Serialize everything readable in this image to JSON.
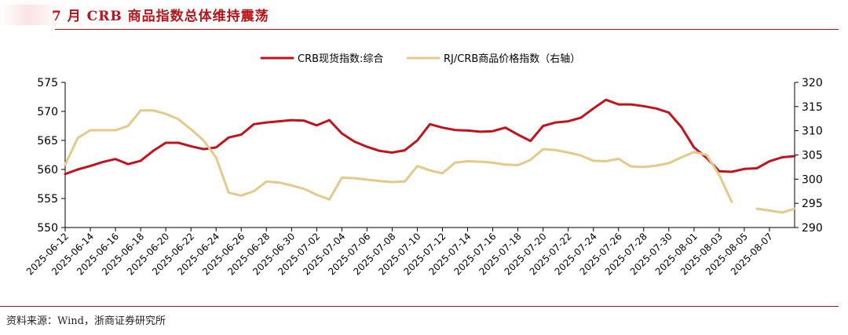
{
  "header": {
    "title": "7 月 CRB 商品指数总体维持震荡"
  },
  "footer": {
    "source": "资料来源：Wind，浙商证券研究所"
  },
  "colors": {
    "series1": "#c0131b",
    "series2": "#e4c98a",
    "accent": "#b8141a"
  },
  "chart_data": {
    "type": "line",
    "legend_position": "top-center",
    "grid": false,
    "x_ticks": [
      "2025-06-12",
      "2025-06-14",
      "2025-06-16",
      "2025-06-18",
      "2025-06-20",
      "2025-06-22",
      "2025-06-24",
      "2025-06-26",
      "2025-06-28",
      "2025-06-30",
      "2025-07-02",
      "2025-07-04",
      "2025-07-06",
      "2025-07-08",
      "2025-07-10",
      "2025-07-12",
      "2025-07-14",
      "2025-07-16",
      "2025-07-18",
      "2025-07-20",
      "2025-07-22",
      "2025-07-24",
      "2025-07-26",
      "2025-07-28",
      "2025-07-30",
      "2025-08-01",
      "2025-08-03",
      "2025-08-05",
      "2025-08-07"
    ],
    "y_left": {
      "range": [
        550,
        575
      ],
      "ticks": [
        "575",
        "570",
        "565",
        "560",
        "555",
        "550"
      ]
    },
    "y_right": {
      "range": [
        290,
        320
      ],
      "ticks": [
        "320",
        "315",
        "310",
        "305",
        "300",
        "295",
        "290"
      ]
    },
    "series": [
      {
        "name": "CRB现货指数:综合",
        "axis": "left",
        "points": [
          [
            "2025-06-12",
            559.2
          ],
          [
            "2025-06-13",
            560.0
          ],
          [
            "2025-06-14",
            560.6
          ],
          [
            "2025-06-15",
            561.3
          ],
          [
            "2025-06-16",
            561.8
          ],
          [
            "2025-06-17",
            560.9
          ],
          [
            "2025-06-18",
            561.5
          ],
          [
            "2025-06-19",
            563.2
          ],
          [
            "2025-06-20",
            564.6
          ],
          [
            "2025-06-21",
            564.6
          ],
          [
            "2025-06-22",
            564.0
          ],
          [
            "2025-06-23",
            563.5
          ],
          [
            "2025-06-24",
            563.8
          ],
          [
            "2025-06-25",
            565.5
          ],
          [
            "2025-06-26",
            566.0
          ],
          [
            "2025-06-27",
            567.8
          ],
          [
            "2025-06-28",
            568.1
          ],
          [
            "2025-06-29",
            568.3
          ],
          [
            "2025-06-30",
            568.5
          ],
          [
            "2025-07-01",
            568.4
          ],
          [
            "2025-07-02",
            567.6
          ],
          [
            "2025-07-03",
            568.5
          ],
          [
            "2025-07-04",
            566.2
          ],
          [
            "2025-07-05",
            564.8
          ],
          [
            "2025-07-06",
            563.9
          ],
          [
            "2025-07-07",
            563.2
          ],
          [
            "2025-07-08",
            562.9
          ],
          [
            "2025-07-09",
            563.3
          ],
          [
            "2025-07-10",
            565.0
          ],
          [
            "2025-07-11",
            567.8
          ],
          [
            "2025-07-12",
            567.2
          ],
          [
            "2025-07-13",
            566.8
          ],
          [
            "2025-07-14",
            566.7
          ],
          [
            "2025-07-15",
            566.5
          ],
          [
            "2025-07-16",
            566.6
          ],
          [
            "2025-07-17",
            567.2
          ],
          [
            "2025-07-18",
            566.0
          ],
          [
            "2025-07-19",
            564.9
          ],
          [
            "2025-07-20",
            567.5
          ],
          [
            "2025-07-21",
            568.1
          ],
          [
            "2025-07-22",
            568.3
          ],
          [
            "2025-07-23",
            568.9
          ],
          [
            "2025-07-24",
            570.5
          ],
          [
            "2025-07-25",
            572.0
          ],
          [
            "2025-07-26",
            571.2
          ],
          [
            "2025-07-27",
            571.2
          ],
          [
            "2025-07-28",
            570.9
          ],
          [
            "2025-07-29",
            570.5
          ],
          [
            "2025-07-30",
            569.8
          ],
          [
            "2025-07-31",
            567.3
          ],
          [
            "2025-08-01",
            563.8
          ],
          [
            "2025-08-02",
            562.0
          ],
          [
            "2025-08-03",
            559.7
          ],
          [
            "2025-08-04",
            559.6
          ],
          [
            "2025-08-05",
            560.1
          ],
          [
            "2025-08-06",
            560.2
          ],
          [
            "2025-08-07",
            561.4
          ],
          [
            "2025-08-08",
            562.1
          ],
          [
            "2025-08-09",
            562.3
          ]
        ]
      },
      {
        "name": "RJ/CRB商品价格指数（右轴）",
        "axis": "right",
        "segments": [
          [
            [
              "2025-06-12",
              303.0
            ],
            [
              "2025-06-13",
              308.5
            ],
            [
              "2025-06-14",
              310.1
            ],
            [
              "2025-06-15",
              310.1
            ],
            [
              "2025-06-16",
              310.1
            ],
            [
              "2025-06-17",
              311.0
            ],
            [
              "2025-06-18",
              314.2
            ],
            [
              "2025-06-19",
              314.2
            ],
            [
              "2025-06-20",
              313.5
            ],
            [
              "2025-06-21",
              312.4
            ],
            [
              "2025-06-22",
              310.3
            ],
            [
              "2025-06-23",
              308.0
            ],
            [
              "2025-06-24",
              304.5
            ],
            [
              "2025-06-25",
              297.2
            ],
            [
              "2025-06-26",
              296.6
            ],
            [
              "2025-06-27",
              297.5
            ],
            [
              "2025-06-28",
              299.5
            ],
            [
              "2025-06-29",
              299.3
            ],
            [
              "2025-06-30",
              298.7
            ],
            [
              "2025-07-01",
              298.0
            ],
            [
              "2025-07-02",
              296.8
            ],
            [
              "2025-07-03",
              295.8
            ],
            [
              "2025-07-04",
              300.3
            ],
            [
              "2025-07-05",
              300.2
            ],
            [
              "2025-07-06",
              299.9
            ],
            [
              "2025-07-07",
              299.6
            ],
            [
              "2025-07-08",
              299.4
            ],
            [
              "2025-07-09",
              299.5
            ],
            [
              "2025-07-10",
              302.7
            ],
            [
              "2025-07-11",
              301.8
            ],
            [
              "2025-07-12",
              301.2
            ],
            [
              "2025-07-13",
              303.4
            ],
            [
              "2025-07-14",
              303.7
            ],
            [
              "2025-07-15",
              303.6
            ],
            [
              "2025-07-16",
              303.4
            ],
            [
              "2025-07-17",
              303.0
            ],
            [
              "2025-07-18",
              302.9
            ],
            [
              "2025-07-19",
              304.0
            ],
            [
              "2025-07-20",
              306.2
            ],
            [
              "2025-07-21",
              306.0
            ],
            [
              "2025-07-22",
              305.5
            ],
            [
              "2025-07-23",
              304.9
            ],
            [
              "2025-07-24",
              303.8
            ],
            [
              "2025-07-25",
              303.7
            ],
            [
              "2025-07-26",
              304.2
            ],
            [
              "2025-07-27",
              302.6
            ],
            [
              "2025-07-28",
              302.5
            ],
            [
              "2025-07-29",
              302.8
            ],
            [
              "2025-07-30",
              303.3
            ],
            [
              "2025-07-31",
              304.5
            ],
            [
              "2025-08-01",
              305.6
            ],
            [
              "2025-08-02",
              305.0
            ],
            [
              "2025-08-03",
              300.9
            ],
            [
              "2025-08-04",
              295.3
            ]
          ],
          [
            [
              "2025-08-06",
              293.9
            ],
            [
              "2025-08-07",
              293.5
            ],
            [
              "2025-08-08",
              293.1
            ],
            [
              "2025-08-09",
              293.9
            ]
          ]
        ]
      }
    ]
  }
}
